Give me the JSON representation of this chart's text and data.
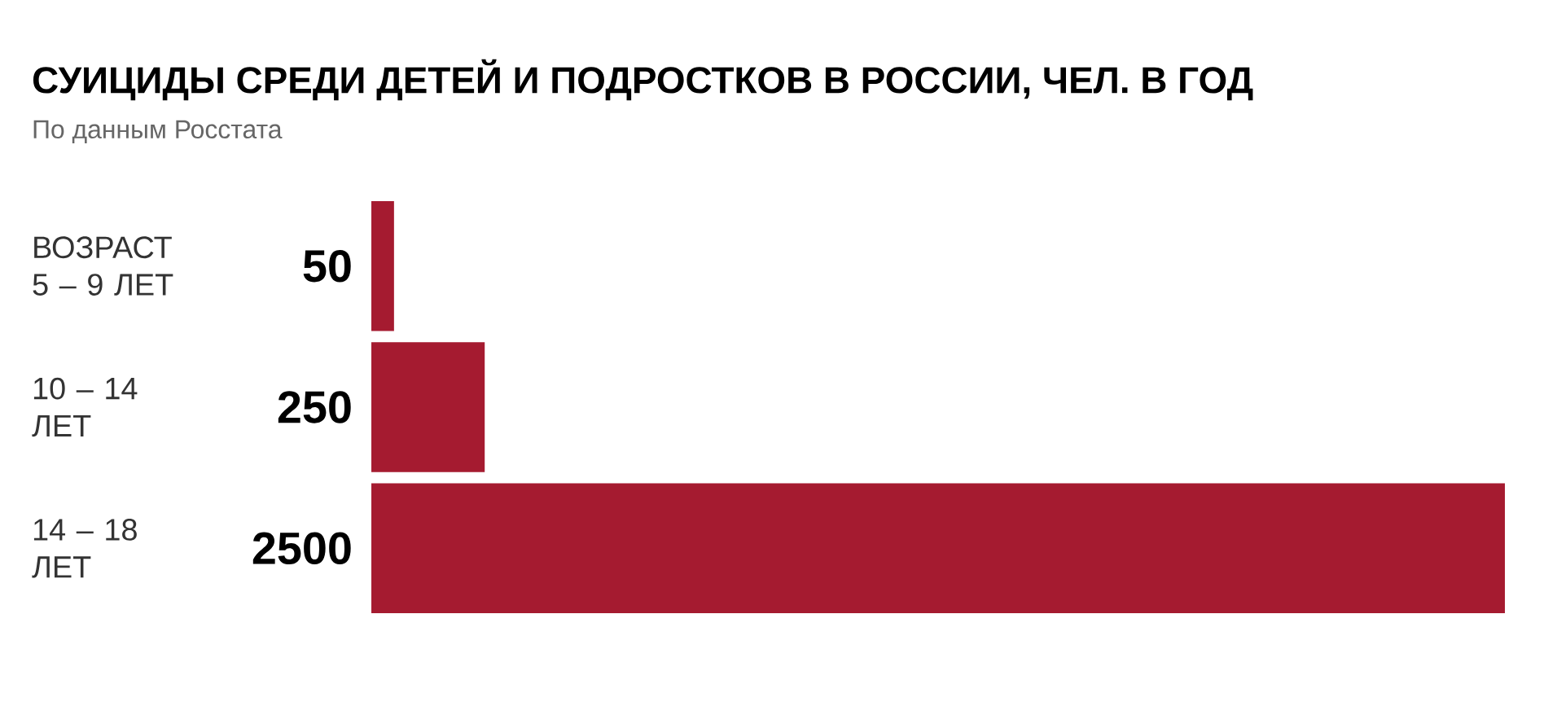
{
  "chart_data": {
    "type": "bar",
    "orientation": "horizontal",
    "title": "СУИЦИДЫ СРЕДИ ДЕТЕЙ И ПОДРОСТКОВ В РОССИИ, ЧЕЛ. В ГОД",
    "subtitle": "По данным Росстата",
    "categories": [
      "ВОЗРАСТ 5 – 9 ЛЕТ",
      "10 – 14 ЛЕТ",
      "14 – 18 ЛЕТ"
    ],
    "values": [
      50,
      250,
      2500
    ],
    "color": "#a51b30",
    "data_labels": true
  }
}
